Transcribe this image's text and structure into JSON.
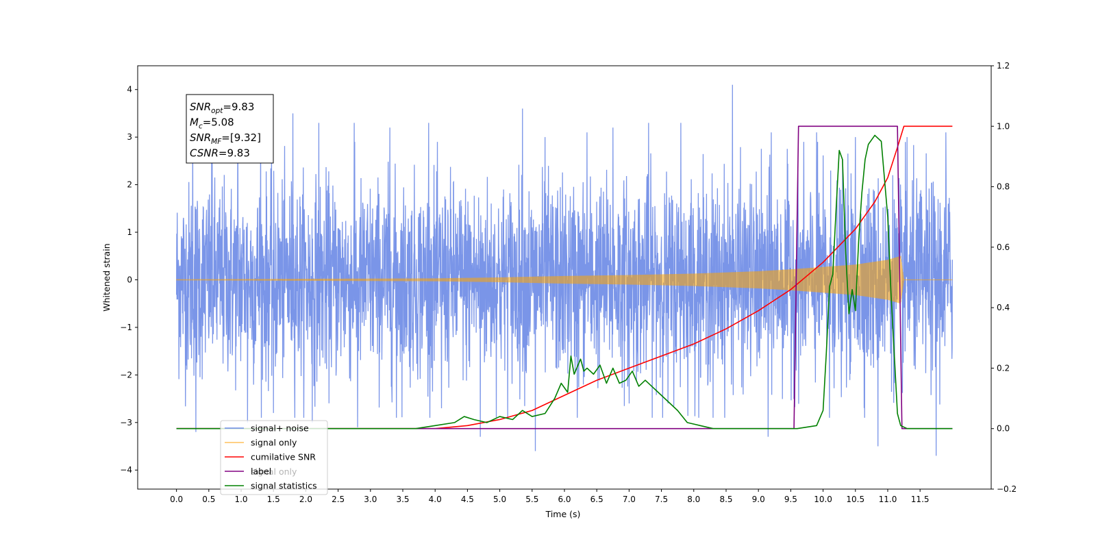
{
  "chart_data": {
    "type": "line",
    "xlabel": "Time (s)",
    "ylabel": "Whitened strain",
    "xlim": [
      -0.6,
      12.6
    ],
    "ylim": [
      -4.4,
      4.5
    ],
    "ylim_right": [
      -0.2,
      1.2
    ],
    "x_ticks": [
      0.0,
      0.5,
      1.0,
      1.5,
      2.0,
      2.5,
      3.0,
      3.5,
      4.0,
      4.5,
      5.0,
      5.5,
      6.0,
      6.5,
      7.0,
      7.5,
      8.0,
      8.5,
      9.0,
      9.5,
      10.0,
      10.5,
      11.0,
      11.5
    ],
    "x_tick_labels": [
      "0.0",
      "0.5",
      "1.0",
      "1.5",
      "2.0",
      "2.5",
      "3.0",
      "3.5",
      "4.0",
      "4.5",
      "5.0",
      "5.5",
      "6.0",
      "6.5",
      "7.0",
      "7.5",
      "8.0",
      "8.5",
      "9.0",
      "9.5",
      "10.0",
      "10.5",
      "11.0",
      "11.5"
    ],
    "y_ticks": [
      -4,
      -3,
      -2,
      -1,
      0,
      1,
      2,
      3,
      4
    ],
    "y_tick_labels": [
      "−4",
      "−3",
      "−2",
      "−1",
      "0",
      "1",
      "2",
      "3",
      "4"
    ],
    "y_ticks_right": [
      -0.2,
      0.0,
      0.2,
      0.4,
      0.6,
      0.8,
      1.0,
      1.2
    ],
    "y_tick_labels_right": [
      "−0.2",
      "0.0",
      "0.2",
      "0.4",
      "0.6",
      "0.8",
      "1.0",
      "1.2"
    ],
    "legend_position": "lower-left",
    "series": [
      {
        "name": "signal+ noise",
        "axis": "left",
        "color": "#6b8ae6",
        "kind": "noise-band",
        "x_range": [
          0.0,
          12.0
        ],
        "typical_amplitude": 1.3,
        "peak_up": [
          [
            0.25,
            3.2
          ],
          [
            0.55,
            3.0
          ],
          [
            0.95,
            3.4
          ],
          [
            1.3,
            3.3
          ],
          [
            1.8,
            3.5
          ],
          [
            2.2,
            3.3
          ],
          [
            2.75,
            3.3
          ],
          [
            3.3,
            3.2
          ],
          [
            3.9,
            3.3
          ],
          [
            4.7,
            3.3
          ],
          [
            5.35,
            3.6
          ],
          [
            5.7,
            3.0
          ],
          [
            6.35,
            3.1
          ],
          [
            6.75,
            3.2
          ],
          [
            7.3,
            3.3
          ],
          [
            7.8,
            3.3
          ],
          [
            8.6,
            4.1
          ],
          [
            9.2,
            3.1
          ],
          [
            9.9,
            3.1
          ],
          [
            10.5,
            3.0
          ],
          [
            11.3,
            3.0
          ],
          [
            11.9,
            3.1
          ]
        ],
        "peak_down": [
          [
            0.3,
            -3.2
          ],
          [
            1.1,
            -3.0
          ],
          [
            1.5,
            -2.8
          ],
          [
            2.1,
            -3.0
          ],
          [
            2.8,
            -3.1
          ],
          [
            3.4,
            -2.9
          ],
          [
            4.1,
            -2.7
          ],
          [
            4.7,
            -3.3
          ],
          [
            5.55,
            -3.6
          ],
          [
            6.2,
            -2.9
          ],
          [
            7.0,
            -2.6
          ],
          [
            7.6,
            -2.6
          ],
          [
            8.3,
            -2.9
          ],
          [
            9.15,
            -3.3
          ],
          [
            10.1,
            -2.9
          ],
          [
            10.85,
            -3.5
          ],
          [
            11.75,
            -3.7
          ]
        ]
      },
      {
        "name": "signal only",
        "axis": "left",
        "color": "#ffa500",
        "kind": "chirp-envelope",
        "x": [
          0.0,
          2.0,
          4.0,
          5.0,
          6.0,
          7.0,
          8.0,
          9.0,
          9.5,
          10.0,
          10.5,
          11.0,
          11.2,
          11.25,
          12.0
        ],
        "envelope": [
          0.01,
          0.02,
          0.03,
          0.05,
          0.08,
          0.1,
          0.13,
          0.18,
          0.22,
          0.27,
          0.32,
          0.42,
          0.5,
          0.0,
          0.0
        ]
      },
      {
        "name": "cumilative SNR",
        "axis": "right",
        "color": "#ff0000",
        "x": [
          0.0,
          3.5,
          4.0,
          4.5,
          5.0,
          5.5,
          6.0,
          6.5,
          7.0,
          7.5,
          8.0,
          8.5,
          9.0,
          9.5,
          10.0,
          10.5,
          10.8,
          11.0,
          11.15,
          11.25,
          12.0
        ],
        "y": [
          0.0,
          0.0,
          0.0,
          0.01,
          0.03,
          0.06,
          0.11,
          0.16,
          0.2,
          0.24,
          0.28,
          0.33,
          0.39,
          0.46,
          0.55,
          0.66,
          0.75,
          0.83,
          0.93,
          1.0,
          1.0
        ]
      },
      {
        "name": "label",
        "axis": "right",
        "color": "#800080",
        "x": [
          0.0,
          9.55,
          9.62,
          11.15,
          11.22,
          12.0
        ],
        "y": [
          0.0,
          0.0,
          1.0,
          1.0,
          0.0,
          0.0
        ]
      },
      {
        "name": "signal statistics",
        "axis": "right",
        "color": "#008000",
        "x": [
          0.0,
          3.7,
          4.0,
          4.3,
          4.45,
          4.6,
          4.8,
          5.0,
          5.2,
          5.35,
          5.5,
          5.7,
          5.85,
          5.95,
          6.05,
          6.1,
          6.15,
          6.25,
          6.3,
          6.35,
          6.45,
          6.55,
          6.65,
          6.75,
          6.85,
          6.95,
          7.05,
          7.15,
          7.25,
          7.35,
          7.45,
          7.6,
          7.75,
          7.9,
          8.1,
          8.3,
          9.0,
          9.3,
          9.6,
          9.9,
          10.0,
          10.05,
          10.1,
          10.15,
          10.2,
          10.25,
          10.3,
          10.35,
          10.4,
          10.45,
          10.5,
          10.55,
          10.6,
          10.65,
          10.7,
          10.8,
          10.9,
          11.0,
          11.05,
          11.15,
          11.2,
          11.3,
          12.0
        ],
        "y": [
          0.0,
          0.0,
          0.01,
          0.02,
          0.04,
          0.03,
          0.02,
          0.04,
          0.03,
          0.06,
          0.04,
          0.05,
          0.1,
          0.15,
          0.12,
          0.24,
          0.18,
          0.23,
          0.19,
          0.2,
          0.18,
          0.21,
          0.15,
          0.2,
          0.15,
          0.16,
          0.19,
          0.14,
          0.16,
          0.14,
          0.12,
          0.09,
          0.06,
          0.02,
          0.01,
          0.0,
          0.0,
          0.0,
          0.0,
          0.01,
          0.06,
          0.25,
          0.47,
          0.51,
          0.72,
          0.92,
          0.89,
          0.58,
          0.38,
          0.46,
          0.39,
          0.62,
          0.78,
          0.89,
          0.94,
          0.97,
          0.95,
          0.7,
          0.45,
          0.05,
          0.01,
          0.0,
          0.0
        ]
      }
    ],
    "legend": [
      {
        "label": "signal+ noise",
        "color": "#6b8ae6"
      },
      {
        "label": "signal only",
        "color": "#ffc15c"
      },
      {
        "label": "cumilative SNR",
        "color": "#ff0000"
      },
      {
        "label": "label",
        "color": "#800080"
      },
      {
        "label": "signal statistics",
        "color": "#008000"
      }
    ],
    "legend_hidden_text": [
      "signal only"
    ],
    "annotations": [
      {
        "base": "SNR",
        "sub": "opt",
        "value": "=9.83"
      },
      {
        "base": "M",
        "sub": "c",
        "value": "=5.08"
      },
      {
        "base": "SNR",
        "sub": "MF",
        "value": "=[9.32]"
      },
      {
        "base": "CSNR",
        "sub": "",
        "value": "=9.83"
      }
    ]
  }
}
